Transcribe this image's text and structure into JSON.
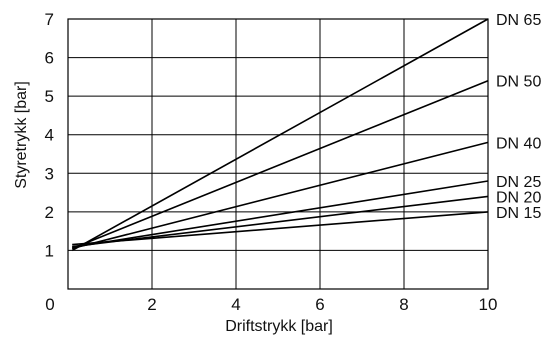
{
  "chart_data": {
    "type": "line",
    "xlabel": "Driftstrykk [bar]",
    "ylabel": "Styretrykk [bar]",
    "xlim": [
      0,
      10
    ],
    "ylim": [
      0,
      7
    ],
    "xticks": [
      "0",
      "2",
      "4",
      "6",
      "8",
      "10"
    ],
    "yticks": [
      "1",
      "2",
      "3",
      "4",
      "5",
      "6",
      "7"
    ],
    "grid": true,
    "legend": "right-end-labels",
    "series": [
      {
        "name": "DN 65",
        "x": [
          0.1,
          10
        ],
        "y": [
          1.0,
          7.0
        ]
      },
      {
        "name": "DN 50",
        "x": [
          0.1,
          10
        ],
        "y": [
          1.05,
          5.4
        ]
      },
      {
        "name": "DN 40",
        "x": [
          0.1,
          10
        ],
        "y": [
          1.05,
          3.8
        ]
      },
      {
        "name": "DN 25",
        "x": [
          0.1,
          10
        ],
        "y": [
          1.08,
          2.8
        ]
      },
      {
        "name": "DN 20",
        "x": [
          0.1,
          10
        ],
        "y": [
          1.1,
          2.4
        ]
      },
      {
        "name": "DN 15",
        "x": [
          0.1,
          10
        ],
        "y": [
          1.15,
          2.0
        ]
      }
    ],
    "colors": {
      "line": "#000000",
      "grid": "#000000"
    }
  }
}
